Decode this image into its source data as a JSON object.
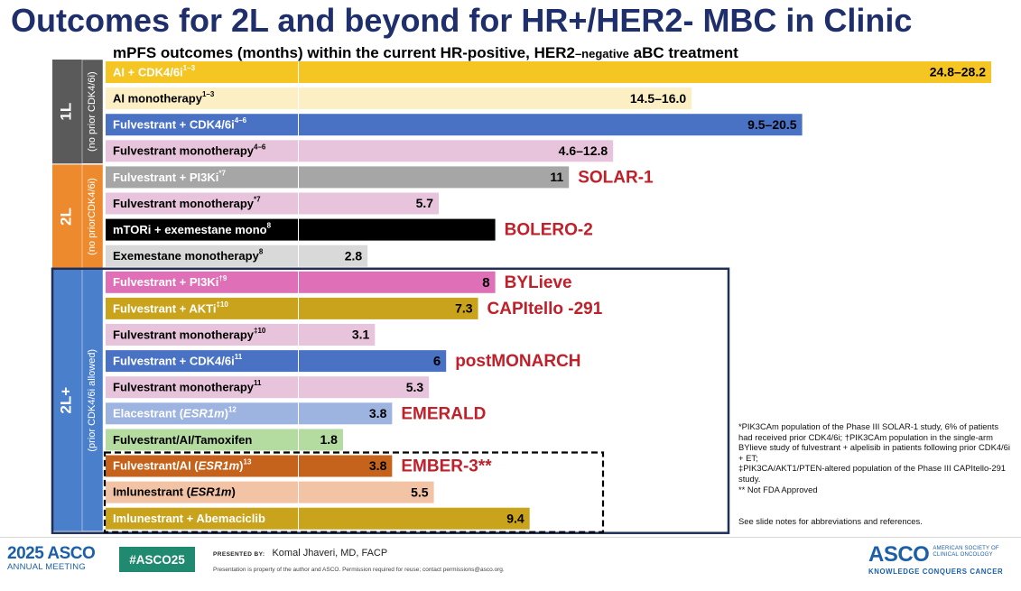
{
  "title": "Outcomes for 2L and beyond for HR+/HER2- MBC in Clinic",
  "subtitle": {
    "prefix": "mPFS outcomes (months) within the current HR-positive, HER2",
    "mid": "–negative",
    "suffix": " aBC treatment"
  },
  "groups": [
    {
      "label": "1L",
      "sublabel": "(no prior CDK4/6i)",
      "color": "#5a5a5a"
    },
    {
      "label": "2L",
      "sublabel": "(no priorCDK4/6i)",
      "color": "#ee8a2e"
    },
    {
      "label": "2L+",
      "sublabel": "(prior CDK4/6i allowed)",
      "color": "#4a7fcb"
    }
  ],
  "chart_data": {
    "type": "bar",
    "orientation": "horizontal",
    "title": "mPFS outcomes (months) within the current HR-positive, HER2–negative aBC treatment",
    "value_unit": "months",
    "bars": [
      {
        "group": 0,
        "name": "AI + CDK4/6i",
        "sup": "1–3",
        "low": 24.8,
        "high": 28.2,
        "value_label": "24.8–28.2",
        "color": "#f5c524",
        "label_bg": "#f5c524",
        "label_color": "#ffffff",
        "trial": ""
      },
      {
        "group": 0,
        "name": "AI monotherapy",
        "sup": "1–3",
        "low": 14.5,
        "high": 16.0,
        "value_label": "14.5–16.0",
        "color": "#fcefc4",
        "label_bg": "#fcefc4",
        "label_color": "#000000",
        "trial": ""
      },
      {
        "group": 0,
        "name": "Fulvestrant + CDK4/6i",
        "sup": "4–6",
        "low": 9.5,
        "high": 20.5,
        "value_label": "9.5–20.5",
        "color": "#4a72c4",
        "label_bg": "#4a72c4",
        "label_color": "#ffffff",
        "trial": ""
      },
      {
        "group": 0,
        "name": "Fulvestrant monotherapy",
        "sup": "4–6",
        "low": 4.6,
        "high": 12.8,
        "value_label": "4.6–12.8",
        "color": "#e8c4dc",
        "label_bg": "#e8c4dc",
        "label_color": "#000000",
        "trial": ""
      },
      {
        "group": 1,
        "name": "Fulvestrant + PI3Ki",
        "sup": "*7",
        "low": 11,
        "high": 11,
        "value_label": "11",
        "color": "#a6a6a6",
        "label_bg": "#a6a6a6",
        "label_color": "#ffffff",
        "trial": "SOLAR-1"
      },
      {
        "group": 1,
        "name": "Fulvestrant monotherapy",
        "sup": "*7",
        "low": 5.7,
        "high": 5.7,
        "value_label": "5.7",
        "color": "#e8c4dc",
        "label_bg": "#e8c4dc",
        "label_color": "#000000",
        "trial": ""
      },
      {
        "group": 1,
        "name": "mTORi + exemestane mono",
        "sup": "8",
        "low": 8,
        "high": 8,
        "value_label": "",
        "color": "#000000",
        "label_bg": "#000000",
        "label_color": "#ffffff",
        "trial": "BOLERO-2"
      },
      {
        "group": 1,
        "name": "Exemestane monotherapy",
        "sup": "8",
        "low": 2.8,
        "high": 2.8,
        "value_label": "2.8",
        "color": "#d9d9d9",
        "label_bg": "#d9d9d9",
        "label_color": "#000000",
        "trial": ""
      },
      {
        "group": 2,
        "name": "Fulvestrant + PI3Ki",
        "sup": "†9",
        "low": 8,
        "high": 8,
        "value_label": "8",
        "color": "#df6fb6",
        "label_bg": "#df6fb6",
        "label_color": "#ffffff",
        "trial": "BYLieve"
      },
      {
        "group": 2,
        "name": "Fulvestrant + AKTi",
        "sup": "‡10",
        "low": 7.3,
        "high": 7.3,
        "value_label": "7.3",
        "color": "#c9a31b",
        "label_bg": "#c9a31b",
        "label_color": "#ffffff",
        "trial": "CAPItello -291"
      },
      {
        "group": 2,
        "name": "Fulvestrant monotherapy",
        "sup": "‡10",
        "low": 3.1,
        "high": 3.1,
        "value_label": "3.1",
        "color": "#e8c4dc",
        "label_bg": "#e8c4dc",
        "label_color": "#000000",
        "trial": ""
      },
      {
        "group": 2,
        "name": "Fulvestrant + CDK4/6i",
        "sup": "11",
        "low": 6,
        "high": 6,
        "value_label": "6",
        "color": "#4a72c4",
        "label_bg": "#4a72c4",
        "label_color": "#ffffff",
        "trial": "postMONARCH"
      },
      {
        "group": 2,
        "name": "Fulvestrant monotherapy",
        "sup": "11",
        "low": 5.3,
        "high": 5.3,
        "value_label": "5.3",
        "color": "#e8c4dc",
        "label_bg": "#e8c4dc",
        "label_color": "#000000",
        "trial": ""
      },
      {
        "group": 2,
        "name": "Elacestrant (ESR1m)",
        "sup": "12",
        "low": 3.8,
        "high": 3.8,
        "value_label": "3.8",
        "color": "#9db3e0",
        "label_bg": "#9db3e0",
        "label_color": "#ffffff",
        "trial": "EMERALD"
      },
      {
        "group": 2,
        "name": "Fulvestrant/AI/Tamoxifen",
        "sup": "",
        "low": 1.8,
        "high": 1.8,
        "value_label": "1.8",
        "color": "#b5dca0",
        "label_bg": "#b5dca0",
        "label_color": "#000000",
        "trial": ""
      },
      {
        "group": 2,
        "name": "Fulvestrant/AI (ESR1m)",
        "sup": "13",
        "low": 3.8,
        "high": 3.8,
        "value_label": "3.8",
        "color": "#c5631c",
        "label_bg": "#c5631c",
        "label_color": "#ffffff",
        "trial": "EMBER-3**"
      },
      {
        "group": 2,
        "name": "Imlunestrant (ESR1m)",
        "sup": "",
        "low": 5.5,
        "high": 5.5,
        "value_label": "5.5",
        "color": "#f2c4a5",
        "label_bg": "#f2c4a5",
        "label_color": "#000000",
        "trial": ""
      },
      {
        "group": 2,
        "name": "Imlunestrant + Abemaciclib",
        "sup": "",
        "low": 9.4,
        "high": 9.4,
        "value_label": "9.4",
        "color": "#c9a31b",
        "label_bg": "#c9a31b",
        "label_color": "#ffffff",
        "trial": ""
      }
    ]
  },
  "footnotes": [
    "*PIK3CAm population of the Phase III SOLAR-1 study, 6% of patients had received prior CDK4/6i; †PIK3CAm population in the single-arm BYlieve study of fulvestrant + alpelisib in patients following prior CDK4/6i + ET;",
    "‡PIK3CA/AKT1/PTEN-altered population of the Phase III CAPItello-291 study.",
    "** Not FDA Approved"
  ],
  "see_notes": "See slide notes for abbreviations and references.",
  "footer": {
    "meeting_year": "2025 ASCO",
    "meeting_name": "ANNUAL MEETING",
    "hashtag": "#ASCO25",
    "presented_by_label": "PRESENTED BY:",
    "presenter": "Komal Jhaveri, MD, FACP",
    "copyright": "Presentation is property of the author and ASCO. Permission required for reuse; contact permissions@asco.org.",
    "asco_word": "ASCO",
    "asco_society": "AMERICAN SOCIETY OF CLINICAL ONCOLOGY",
    "asco_tagline": "KNOWLEDGE CONQUERS CANCER"
  }
}
